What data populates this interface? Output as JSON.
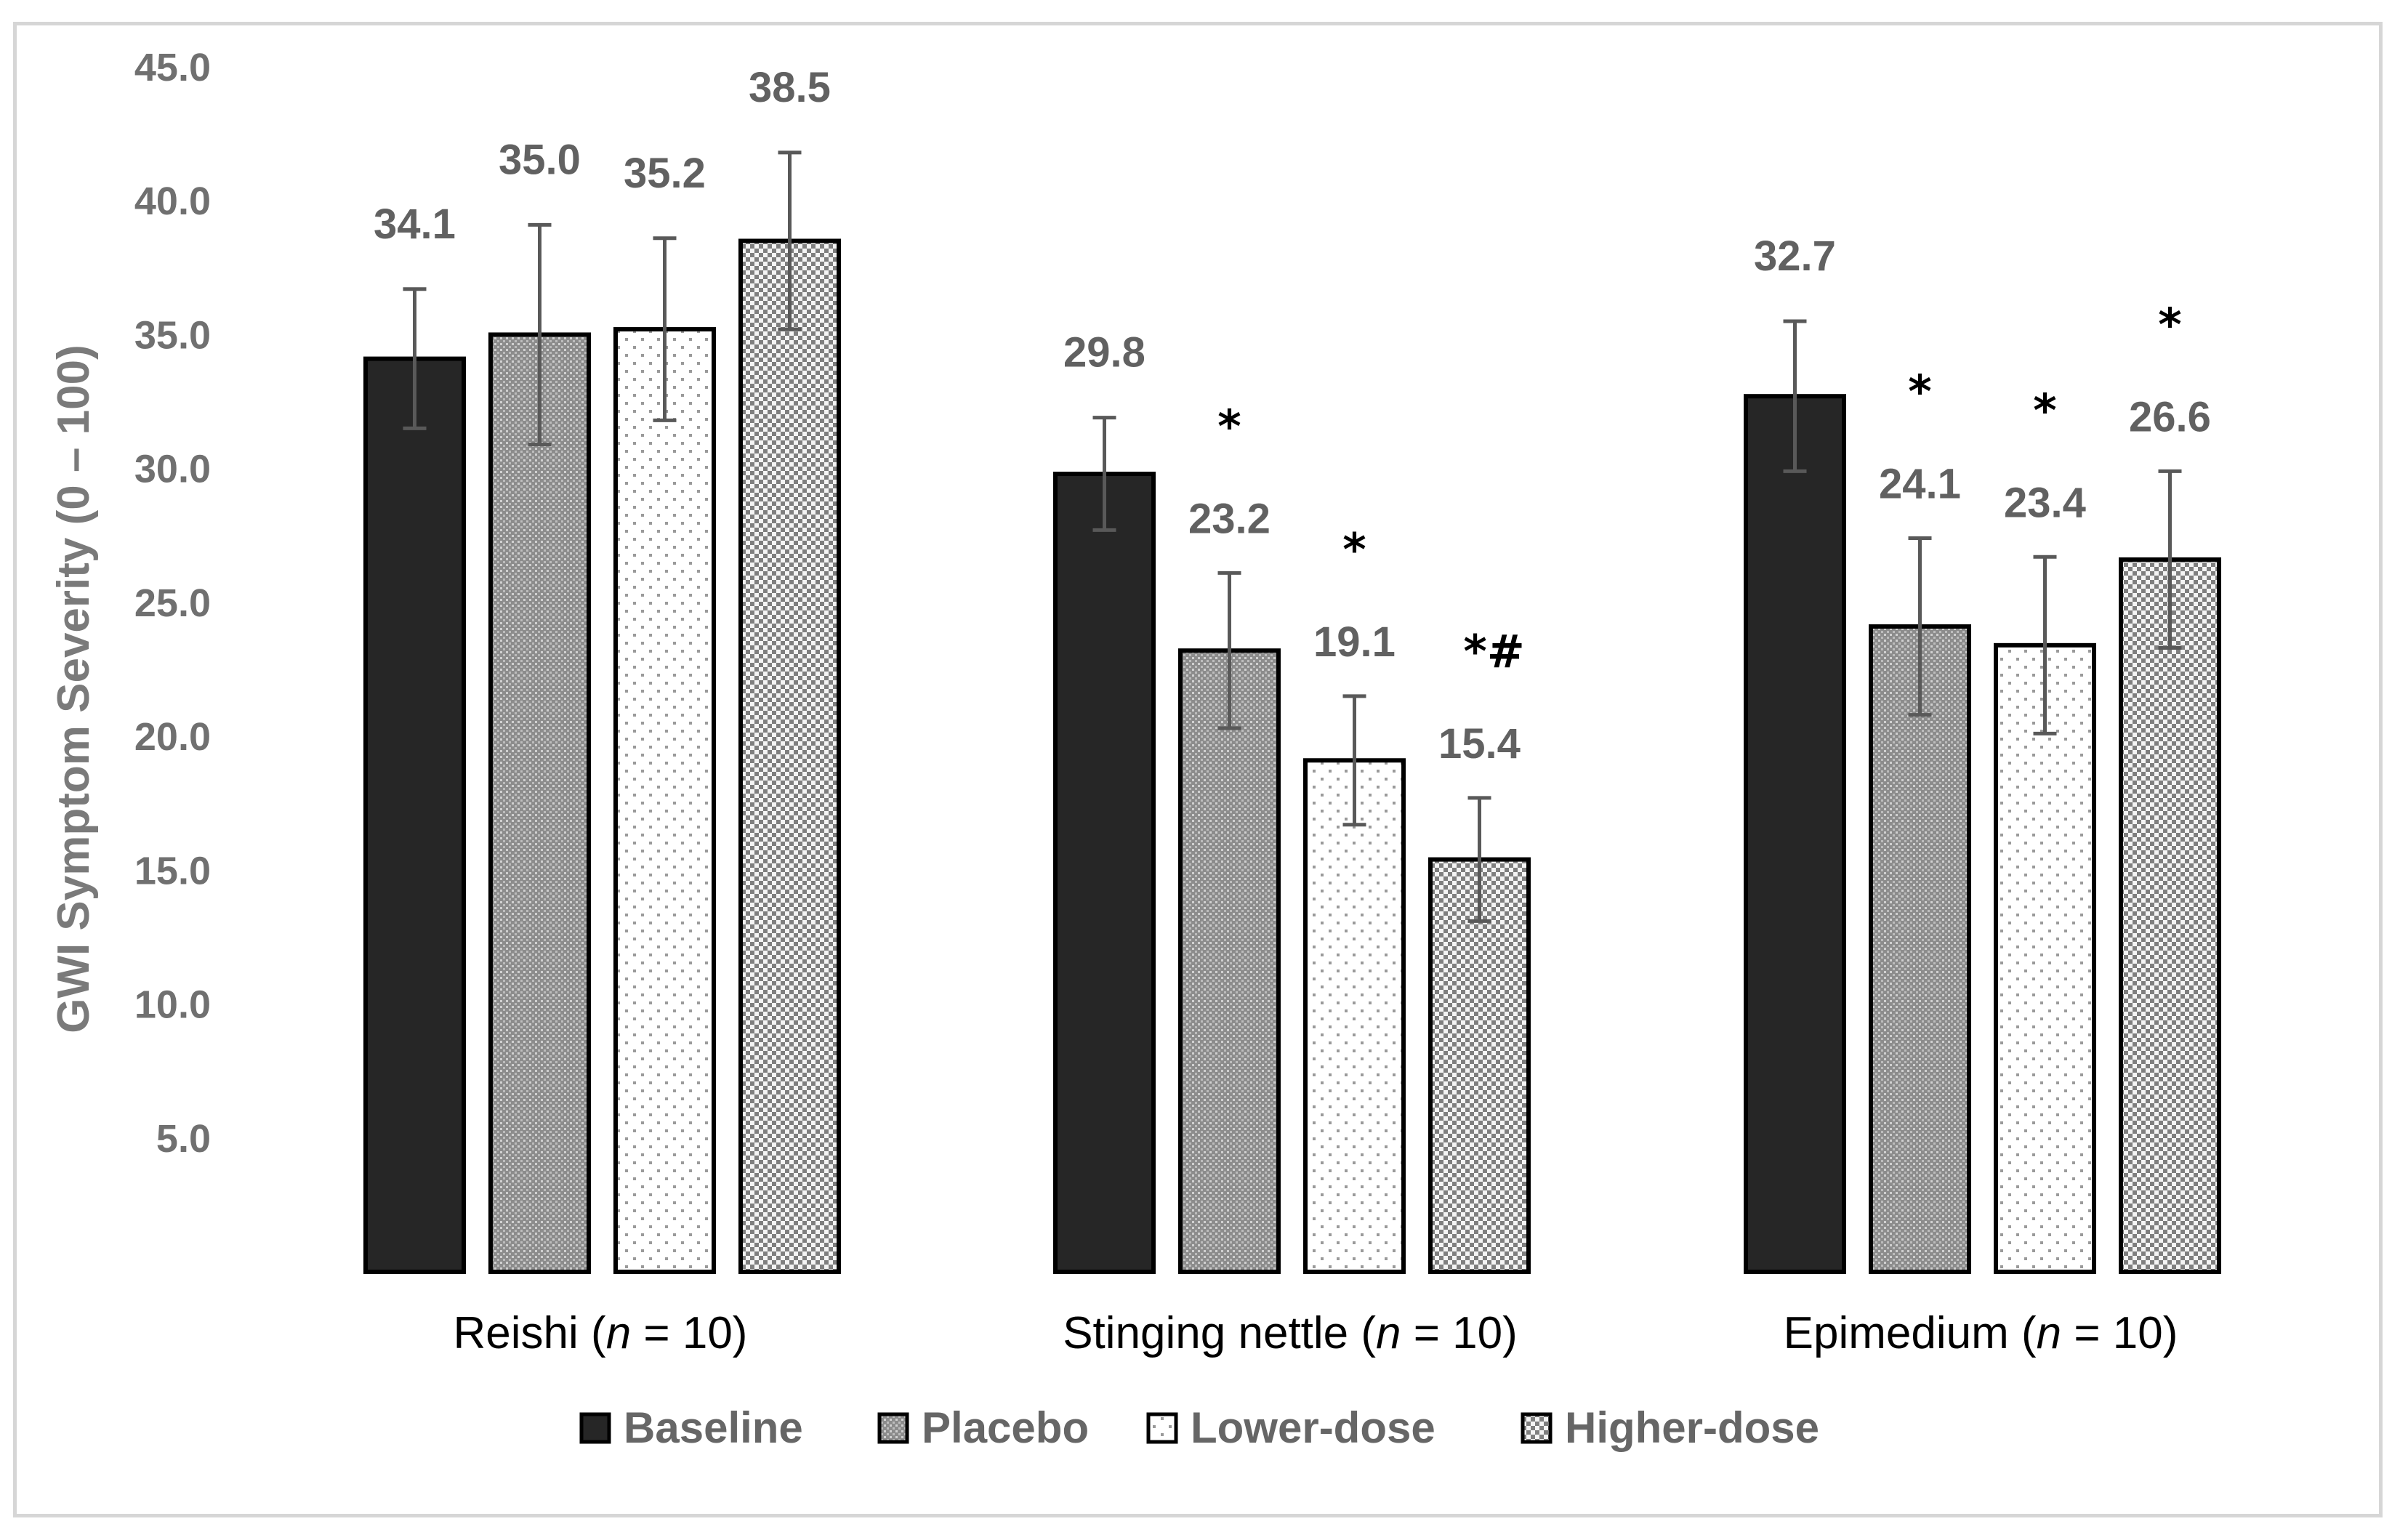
{
  "chart_data": {
    "type": "bar",
    "title": "",
    "xlabel": "",
    "ylabel": "GWI Symptom Severity (0 – 100)",
    "ylim": [
      0,
      45
    ],
    "yticks": [
      "5.0",
      "10.0",
      "15.0",
      "20.0",
      "25.0",
      "30.0",
      "35.0",
      "40.0",
      "45.0"
    ],
    "grid": false,
    "legend_position": "bottom",
    "groups": [
      {
        "name": "Reishi",
        "n_label": "n",
        "n_suffix": " = 10)",
        "prefix": "Reishi ("
      },
      {
        "name": "Stinging nettle",
        "n_label": "n",
        "n_suffix": " = 10)",
        "prefix": "Stinging nettle ("
      },
      {
        "name": "Epimedium",
        "n_label": "n",
        "n_suffix": " = 10)",
        "prefix": "Epimedium ("
      }
    ],
    "series": [
      {
        "name": "Baseline",
        "pattern": "solid-dark",
        "values": [
          34.1,
          29.8,
          32.7
        ],
        "labels": [
          "34.1",
          "29.8",
          "32.7"
        ],
        "error": [
          2.6,
          2.1,
          2.8
        ],
        "significance": [
          "",
          "",
          ""
        ]
      },
      {
        "name": "Placebo",
        "pattern": "dense-gray",
        "values": [
          35.0,
          23.2,
          24.1
        ],
        "labels": [
          "35.0",
          "23.2",
          "24.1"
        ],
        "error": [
          4.1,
          2.9,
          3.3
        ],
        "significance": [
          "",
          "*",
          "*"
        ]
      },
      {
        "name": "Lower-dose",
        "pattern": "sparse-dots",
        "values": [
          35.2,
          19.1,
          23.4
        ],
        "labels": [
          "35.2",
          "19.1",
          "23.4"
        ],
        "error": [
          3.4,
          2.4,
          3.3
        ],
        "significance": [
          "",
          "*",
          "*"
        ]
      },
      {
        "name": "Higher-dose",
        "pattern": "checker",
        "values": [
          38.5,
          15.4,
          26.6
        ],
        "labels": [
          "38.5",
          "15.4",
          "26.6"
        ],
        "error": [
          3.3,
          2.3,
          3.3
        ],
        "significance": [
          "",
          "*#",
          "*"
        ]
      }
    ],
    "colors": {
      "bar_outline": "#000000",
      "baseline_fill": "#262626",
      "error_bar": "#595959",
      "tick_text": "#707070"
    }
  }
}
